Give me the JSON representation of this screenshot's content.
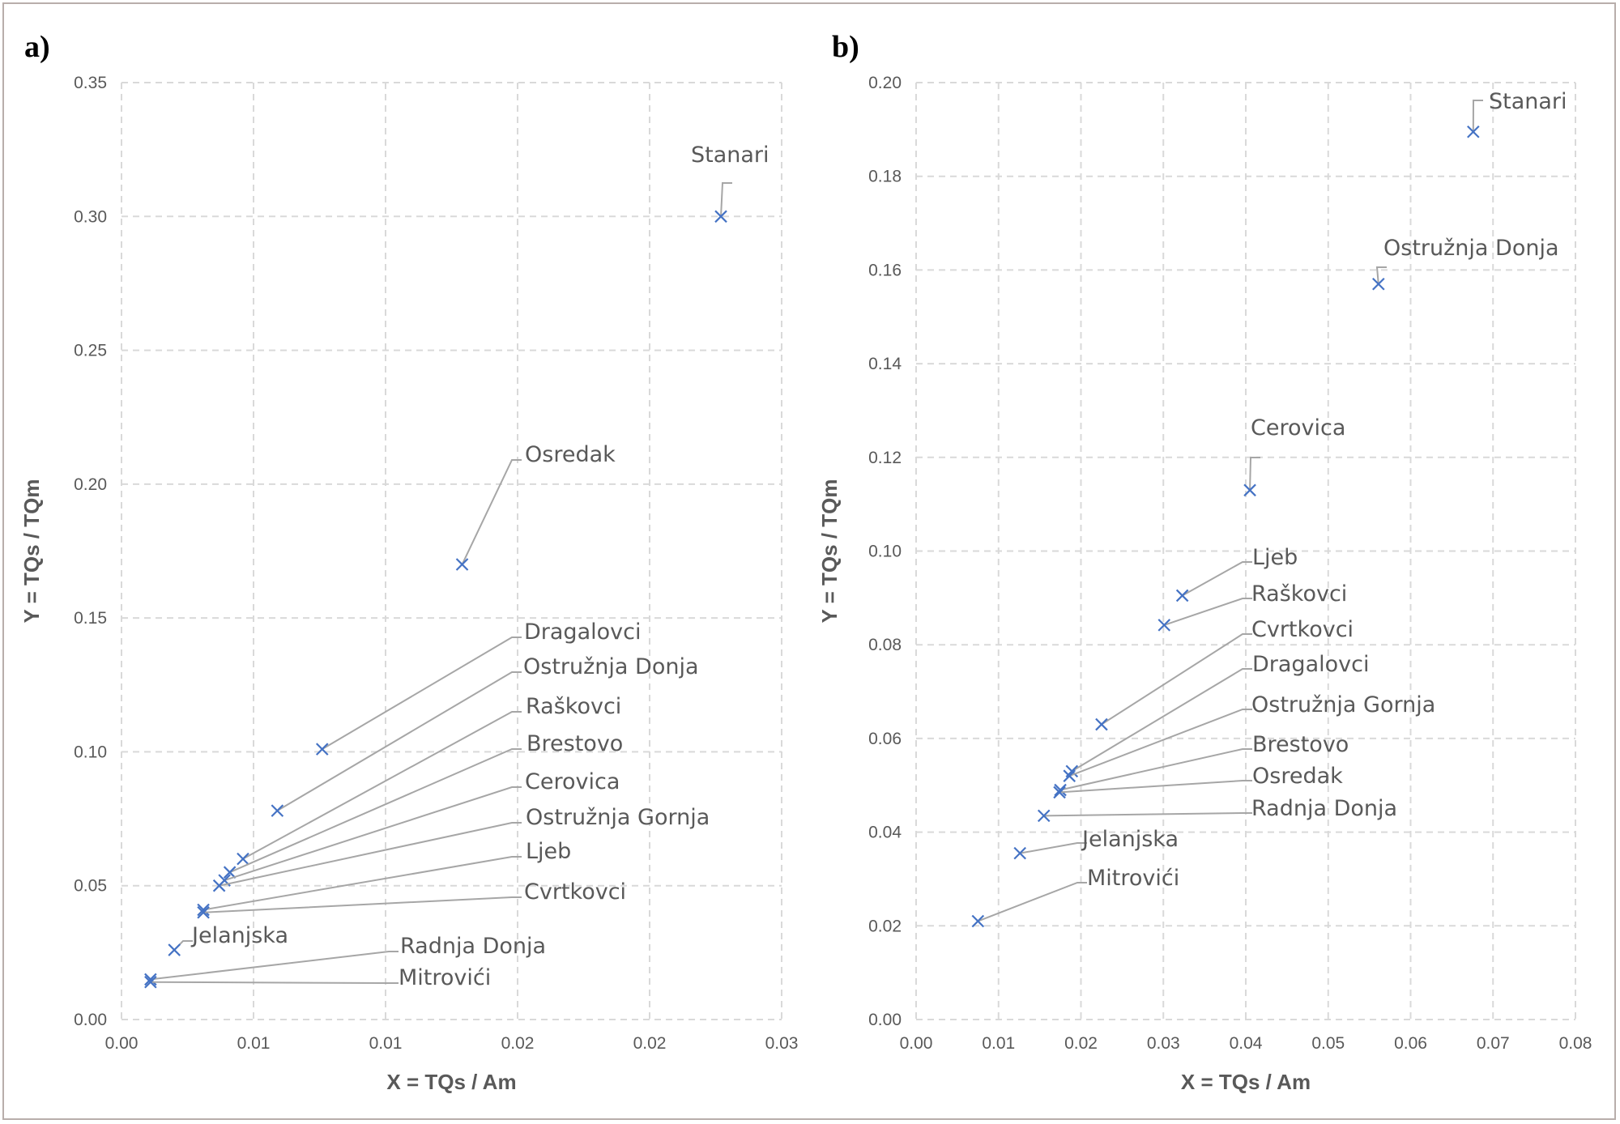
{
  "panels": [
    {
      "label": "a)"
    },
    {
      "label": "b)"
    }
  ],
  "colors": {
    "marker": "#4472c4",
    "leader": "#a6a6a6",
    "grid": "#d9d9d9",
    "text": "#595959"
  },
  "chart_data": [
    {
      "type": "scatter",
      "panel": "a)",
      "xlabel": "X = TQs / Am",
      "ylabel": "Y = TQs / TQm",
      "xlim": [
        0.0,
        0.025
      ],
      "ylim": [
        0.0,
        0.35
      ],
      "x_ticks": [
        0,
        0.005,
        0.01,
        0.015,
        0.02,
        0.025
      ],
      "x_tick_labels": [
        "0.00",
        "0.01",
        "0.01",
        "0.02",
        "0.02",
        "0.03"
      ],
      "y_ticks": [
        0,
        0.05,
        0.1,
        0.15,
        0.2,
        0.25,
        0.3,
        0.35
      ],
      "y_tick_labels": [
        "0.00",
        "0.05",
        "0.10",
        "0.15",
        "0.20",
        "0.25",
        "0.30",
        "0.35"
      ],
      "grid": true,
      "marker": "x",
      "points": [
        {
          "name": "Stanari",
          "x": 0.0227,
          "y": 0.3
        },
        {
          "name": "Osredak",
          "x": 0.0129,
          "y": 0.17
        },
        {
          "name": "Dragalovci",
          "x": 0.0076,
          "y": 0.101
        },
        {
          "name": "Ostružnja Donja",
          "x": 0.0059,
          "y": 0.078
        },
        {
          "name": "Raškovci",
          "x": 0.0046,
          "y": 0.06
        },
        {
          "name": "Brestovo",
          "x": 0.0041,
          "y": 0.055
        },
        {
          "name": "Cerovica",
          "x": 0.0039,
          "y": 0.052
        },
        {
          "name": "Ostružnja Gornja",
          "x": 0.0037,
          "y": 0.05
        },
        {
          "name": "Ljeb",
          "x": 0.0031,
          "y": 0.041
        },
        {
          "name": "Cvrtkovci",
          "x": 0.0031,
          "y": 0.04
        },
        {
          "name": "Jelanjska",
          "x": 0.002,
          "y": 0.026
        },
        {
          "name": "Radnja Donja",
          "x": 0.0011,
          "y": 0.015
        },
        {
          "name": "Mitrovići",
          "x": 0.0011,
          "y": 0.014
        }
      ]
    },
    {
      "type": "scatter",
      "panel": "b)",
      "xlabel": "X = TQs / Am",
      "ylabel": "Y = TQs / TQm",
      "xlim": [
        0.0,
        0.08
      ],
      "ylim": [
        0.0,
        0.2
      ],
      "x_ticks": [
        0,
        0.01,
        0.02,
        0.03,
        0.04,
        0.05,
        0.06,
        0.07,
        0.08
      ],
      "x_tick_labels": [
        "0.00",
        "0.01",
        "0.02",
        "0.03",
        "0.04",
        "0.05",
        "0.06",
        "0.07",
        "0.08"
      ],
      "y_ticks": [
        0,
        0.02,
        0.04,
        0.06,
        0.08,
        0.1,
        0.12,
        0.14,
        0.16,
        0.18,
        0.2
      ],
      "y_tick_labels": [
        "0.00",
        "0.02",
        "0.04",
        "0.06",
        "0.08",
        "0.10",
        "0.12",
        "0.14",
        "0.16",
        "0.18",
        "0.20"
      ],
      "grid": true,
      "marker": "x",
      "points": [
        {
          "name": "Stanari",
          "x": 0.0676,
          "y": 0.1895
        },
        {
          "name": "Ostružnja Donja",
          "x": 0.0561,
          "y": 0.157
        },
        {
          "name": "Cerovica",
          "x": 0.0405,
          "y": 0.113
        },
        {
          "name": "Ljeb",
          "x": 0.0323,
          "y": 0.0905
        },
        {
          "name": "Raškovci",
          "x": 0.0301,
          "y": 0.0842
        },
        {
          "name": "Cvrtkovci",
          "x": 0.0225,
          "y": 0.063
        },
        {
          "name": "Dragalovci",
          "x": 0.0189,
          "y": 0.053
        },
        {
          "name": "Ostružnja Gornja",
          "x": 0.0186,
          "y": 0.052
        },
        {
          "name": "Brestovo",
          "x": 0.0175,
          "y": 0.049
        },
        {
          "name": "Osredak",
          "x": 0.0174,
          "y": 0.0485
        },
        {
          "name": "Radnja Donja",
          "x": 0.0155,
          "y": 0.0435
        },
        {
          "name": "Jelanjska",
          "x": 0.0126,
          "y": 0.0355
        },
        {
          "name": "Mitrovići",
          "x": 0.0075,
          "y": 0.021
        }
      ]
    }
  ]
}
